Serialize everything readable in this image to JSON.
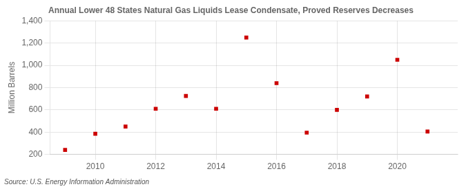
{
  "chart_data": {
    "type": "scatter",
    "title": "Annual Lower 48 States Natural Gas Liquids Lease Condensate, Proved Reserves Decreases",
    "ylabel": "Million Barrels",
    "annotation": "Source: U.S. Energy Information Administration",
    "x": [
      2009,
      2010,
      2011,
      2012,
      2013,
      2014,
      2015,
      2016,
      2017,
      2018,
      2019,
      2020,
      2021
    ],
    "values": [
      240,
      385,
      450,
      610,
      725,
      610,
      1250,
      840,
      395,
      600,
      720,
      1050,
      405
    ],
    "color": "#cc0000",
    "marker": "square",
    "xlim": [
      2008.5,
      2022.0
    ],
    "xticks": [
      2010,
      2012,
      2014,
      2016,
      2018,
      2020
    ],
    "ylim": [
      200,
      1400
    ],
    "yticks": [
      200,
      400,
      600,
      800,
      {
        "value": 1000,
        "label": "1,000"
      },
      {
        "value": 1200,
        "label": "1,200"
      },
      {
        "value": 1400,
        "label": "1,400"
      }
    ],
    "grid": true
  }
}
